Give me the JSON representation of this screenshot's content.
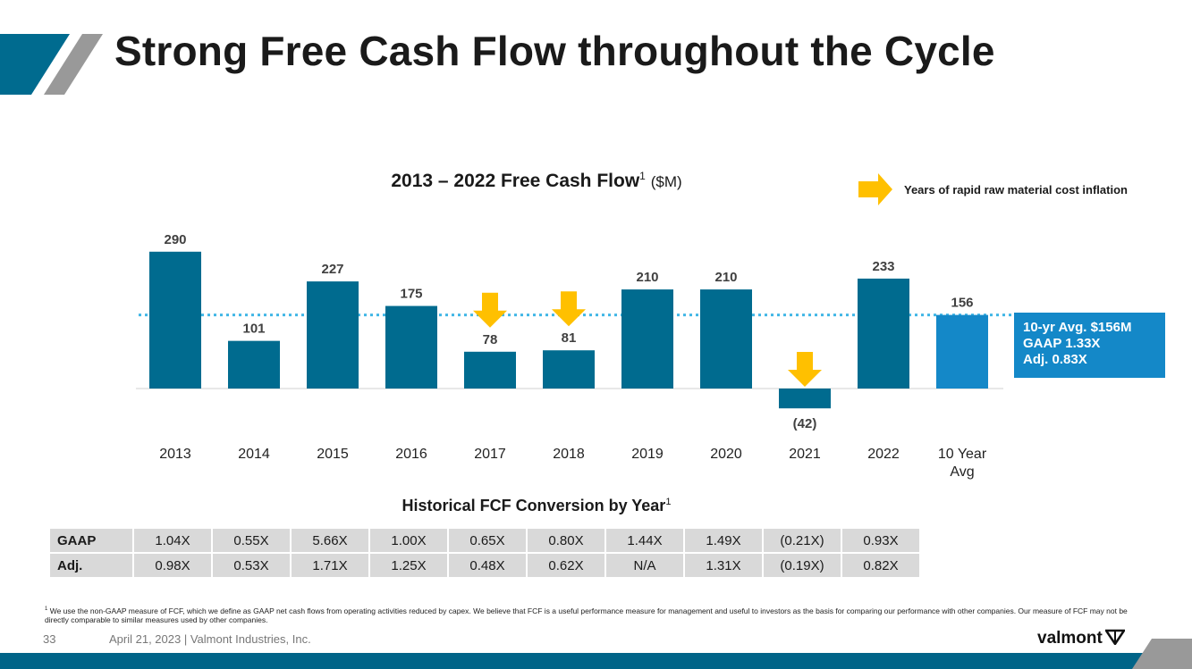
{
  "slide": {
    "title": "Strong Free Cash Flow throughout the Cycle",
    "page_number": "33",
    "footer": "April 21, 2023  |  Valmont Industries, Inc.",
    "logo_text": "valmont",
    "footnote_marker": "1",
    "footnote": "We use the non-GAAP measure of FCF, which we define as GAAP net cash flows from operating activities reduced by capex. We believe that FCF is a useful performance measure for management and useful to investors as the basis for comparing our performance with other companies.  Our measure of FCF may not be directly comparable to similar measures used by other companies."
  },
  "legend": {
    "label": "Years of rapid raw material cost inflation",
    "icon": "arrow-right-icon",
    "color": "#FFC000"
  },
  "avg_box": {
    "line1": "10-yr Avg. $156M",
    "line2": "GAAP 1.33X",
    "line3": "Adj. 0.83X"
  },
  "colors": {
    "bar": "#006B8F",
    "avg_bar": "#1488C8",
    "arrow": "#FFC000",
    "avg_line": "#41B6E6",
    "bottom_bar": "#006488",
    "accent_gray": "#999999"
  },
  "chart_data": {
    "type": "bar",
    "title": "2013 – 2022 Free Cash Flow",
    "title_sup": "1",
    "title_unit": "($M)",
    "categories": [
      "2013",
      "2014",
      "2015",
      "2016",
      "2017",
      "2018",
      "2019",
      "2020",
      "2021",
      "2022",
      "10 Year Avg"
    ],
    "values": [
      290,
      101,
      227,
      175,
      78,
      81,
      210,
      210,
      -42,
      233,
      156
    ],
    "data_labels": [
      "290",
      "101",
      "227",
      "175",
      "78",
      "81",
      "210",
      "210",
      "(42)",
      "233",
      "156"
    ],
    "highlighted_categories": [
      "10 Year Avg"
    ],
    "inflation_years": [
      "2017",
      "2018",
      "2021"
    ],
    "reference_line": 156,
    "ylim": [
      -42,
      290
    ],
    "grid": false
  },
  "conversion_table": {
    "title": "Historical FCF Conversion by Year",
    "title_sup": "1",
    "rows": [
      {
        "label": "GAAP",
        "values": [
          "1.04X",
          "0.55X",
          "5.66X",
          "1.00X",
          "0.65X",
          "0.80X",
          "1.44X",
          "1.49X",
          "(0.21X)",
          "0.93X"
        ]
      },
      {
        "label": "Adj.",
        "values": [
          "0.98X",
          "0.53X",
          "1.71X",
          "1.25X",
          "0.48X",
          "0.62X",
          "N/A",
          "1.31X",
          "(0.19X)",
          "0.82X"
        ]
      }
    ]
  }
}
